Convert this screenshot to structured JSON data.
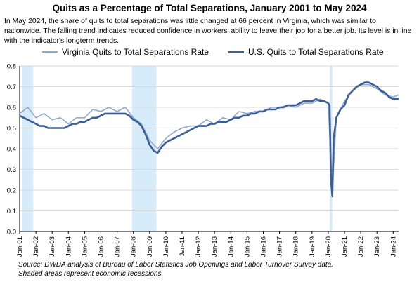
{
  "chart_data": {
    "type": "line",
    "title": "Quits as a Percentage of Total Separations, January 2001 to May 2024",
    "subtitle": "In May 2024, the share of quits to total separations was little changed at 66 percent in Virginia, which was similar to nationwide. The falling trend indicates reduced confidence in workers' ability to leave their job for a better job. Its level is in line with the indicator's longterm trends.",
    "xlabel": "",
    "ylabel": "",
    "ylim": [
      0,
      0.8
    ],
    "yticks": [
      "0.0",
      "0.1",
      "0.2",
      "0.3",
      "0.4",
      "0.5",
      "0.6",
      "0.7",
      "0.8"
    ],
    "xticks": [
      "Jan-01",
      "Jan-02",
      "Jan-03",
      "Jan-04",
      "Jan-05",
      "Jan-06",
      "Jan-07",
      "Jan-08",
      "Jan-09",
      "Jan-10",
      "Jan-11",
      "Jan-12",
      "Jan-13",
      "Jan-14",
      "Jan-15",
      "Jan-16",
      "Jan-17",
      "Jan-18",
      "Jan-19",
      "Jan-20",
      "Jan-21",
      "Jan-22",
      "Jan-23",
      "Jan-24"
    ],
    "x_start": "2001-01",
    "x_end": "2024-05",
    "grid": "horizontal",
    "legend": "top",
    "recessions": [
      [
        "2001-03",
        "2001-11"
      ],
      [
        "2007-12",
        "2009-06"
      ],
      [
        "2020-02",
        "2020-04"
      ]
    ],
    "series": [
      {
        "name": "Virginia Quits to Total Separations Rate",
        "color": "#8fa9d0",
        "points": [
          [
            "2001-01",
            0.57
          ],
          [
            "2001-07",
            0.6
          ],
          [
            "2002-01",
            0.55
          ],
          [
            "2002-07",
            0.57
          ],
          [
            "2003-01",
            0.54
          ],
          [
            "2003-07",
            0.55
          ],
          [
            "2004-01",
            0.52
          ],
          [
            "2004-07",
            0.55
          ],
          [
            "2005-01",
            0.55
          ],
          [
            "2005-07",
            0.59
          ],
          [
            "2006-01",
            0.58
          ],
          [
            "2006-07",
            0.6
          ],
          [
            "2007-01",
            0.58
          ],
          [
            "2007-07",
            0.6
          ],
          [
            "2008-01",
            0.55
          ],
          [
            "2008-07",
            0.52
          ],
          [
            "2009-01",
            0.44
          ],
          [
            "2009-07",
            0.4
          ],
          [
            "2010-01",
            0.45
          ],
          [
            "2010-07",
            0.48
          ],
          [
            "2011-01",
            0.5
          ],
          [
            "2011-07",
            0.51
          ],
          [
            "2012-01",
            0.51
          ],
          [
            "2012-07",
            0.54
          ],
          [
            "2013-01",
            0.52
          ],
          [
            "2013-07",
            0.55
          ],
          [
            "2014-01",
            0.54
          ],
          [
            "2014-07",
            0.58
          ],
          [
            "2015-01",
            0.57
          ],
          [
            "2015-07",
            0.58
          ],
          [
            "2016-01",
            0.58
          ],
          [
            "2016-07",
            0.6
          ],
          [
            "2017-01",
            0.6
          ],
          [
            "2017-07",
            0.61
          ],
          [
            "2018-01",
            0.6
          ],
          [
            "2018-07",
            0.62
          ],
          [
            "2019-01",
            0.62
          ],
          [
            "2019-07",
            0.64
          ],
          [
            "2020-01",
            0.62
          ],
          [
            "2020-04",
            0.2
          ],
          [
            "2020-07",
            0.55
          ],
          [
            "2021-01",
            0.63
          ],
          [
            "2021-07",
            0.68
          ],
          [
            "2022-01",
            0.71
          ],
          [
            "2022-07",
            0.71
          ],
          [
            "2023-01",
            0.69
          ],
          [
            "2023-07",
            0.66
          ],
          [
            "2024-01",
            0.65
          ],
          [
            "2024-05",
            0.66
          ]
        ]
      },
      {
        "name": "U.S. Quits to Total Separations Rate",
        "color": "#3b5f96",
        "points": [
          [
            "2001-01",
            0.56
          ],
          [
            "2001-04",
            0.55
          ],
          [
            "2001-07",
            0.54
          ],
          [
            "2001-10",
            0.53
          ],
          [
            "2002-01",
            0.52
          ],
          [
            "2002-04",
            0.51
          ],
          [
            "2002-07",
            0.51
          ],
          [
            "2002-10",
            0.5
          ],
          [
            "2003-01",
            0.5
          ],
          [
            "2003-04",
            0.5
          ],
          [
            "2003-07",
            0.5
          ],
          [
            "2003-10",
            0.5
          ],
          [
            "2004-01",
            0.51
          ],
          [
            "2004-04",
            0.52
          ],
          [
            "2004-07",
            0.52
          ],
          [
            "2004-10",
            0.53
          ],
          [
            "2005-01",
            0.53
          ],
          [
            "2005-04",
            0.54
          ],
          [
            "2005-07",
            0.55
          ],
          [
            "2005-10",
            0.55
          ],
          [
            "2006-01",
            0.56
          ],
          [
            "2006-04",
            0.57
          ],
          [
            "2006-07",
            0.57
          ],
          [
            "2006-10",
            0.57
          ],
          [
            "2007-01",
            0.57
          ],
          [
            "2007-04",
            0.57
          ],
          [
            "2007-07",
            0.57
          ],
          [
            "2007-10",
            0.56
          ],
          [
            "2008-01",
            0.54
          ],
          [
            "2008-04",
            0.53
          ],
          [
            "2008-07",
            0.51
          ],
          [
            "2008-10",
            0.47
          ],
          [
            "2009-01",
            0.42
          ],
          [
            "2009-04",
            0.39
          ],
          [
            "2009-07",
            0.38
          ],
          [
            "2009-10",
            0.41
          ],
          [
            "2010-01",
            0.43
          ],
          [
            "2010-04",
            0.44
          ],
          [
            "2010-07",
            0.45
          ],
          [
            "2010-10",
            0.46
          ],
          [
            "2011-01",
            0.47
          ],
          [
            "2011-04",
            0.48
          ],
          [
            "2011-07",
            0.49
          ],
          [
            "2011-10",
            0.5
          ],
          [
            "2012-01",
            0.51
          ],
          [
            "2012-04",
            0.51
          ],
          [
            "2012-07",
            0.51
          ],
          [
            "2012-10",
            0.52
          ],
          [
            "2013-01",
            0.52
          ],
          [
            "2013-04",
            0.53
          ],
          [
            "2013-07",
            0.53
          ],
          [
            "2013-10",
            0.53
          ],
          [
            "2014-01",
            0.54
          ],
          [
            "2014-04",
            0.55
          ],
          [
            "2014-07",
            0.55
          ],
          [
            "2014-10",
            0.56
          ],
          [
            "2015-01",
            0.56
          ],
          [
            "2015-04",
            0.57
          ],
          [
            "2015-07",
            0.57
          ],
          [
            "2015-10",
            0.58
          ],
          [
            "2016-01",
            0.58
          ],
          [
            "2016-04",
            0.59
          ],
          [
            "2016-07",
            0.59
          ],
          [
            "2016-10",
            0.59
          ],
          [
            "2017-01",
            0.6
          ],
          [
            "2017-04",
            0.6
          ],
          [
            "2017-07",
            0.61
          ],
          [
            "2017-10",
            0.61
          ],
          [
            "2018-01",
            0.61
          ],
          [
            "2018-04",
            0.62
          ],
          [
            "2018-07",
            0.63
          ],
          [
            "2018-10",
            0.63
          ],
          [
            "2019-01",
            0.63
          ],
          [
            "2019-04",
            0.64
          ],
          [
            "2019-07",
            0.63
          ],
          [
            "2019-10",
            0.63
          ],
          [
            "2020-01",
            0.62
          ],
          [
            "2020-02",
            0.61
          ],
          [
            "2020-03",
            0.25
          ],
          [
            "2020-04",
            0.17
          ],
          [
            "2020-05",
            0.45
          ],
          [
            "2020-07",
            0.55
          ],
          [
            "2020-10",
            0.59
          ],
          [
            "2021-01",
            0.61
          ],
          [
            "2021-04",
            0.66
          ],
          [
            "2021-07",
            0.68
          ],
          [
            "2021-10",
            0.7
          ],
          [
            "2022-01",
            0.71
          ],
          [
            "2022-04",
            0.72
          ],
          [
            "2022-07",
            0.72
          ],
          [
            "2022-10",
            0.71
          ],
          [
            "2023-01",
            0.7
          ],
          [
            "2023-04",
            0.68
          ],
          [
            "2023-07",
            0.67
          ],
          [
            "2023-10",
            0.65
          ],
          [
            "2024-01",
            0.64
          ],
          [
            "2024-03",
            0.64
          ],
          [
            "2024-05",
            0.64
          ]
        ]
      }
    ]
  },
  "source_note": "Source: DWDA analysis of Bureau of Labor Statistics Job Openings and Labor Turnover Survey data.",
  "recession_note": "Shaded areas represent economic recessions."
}
